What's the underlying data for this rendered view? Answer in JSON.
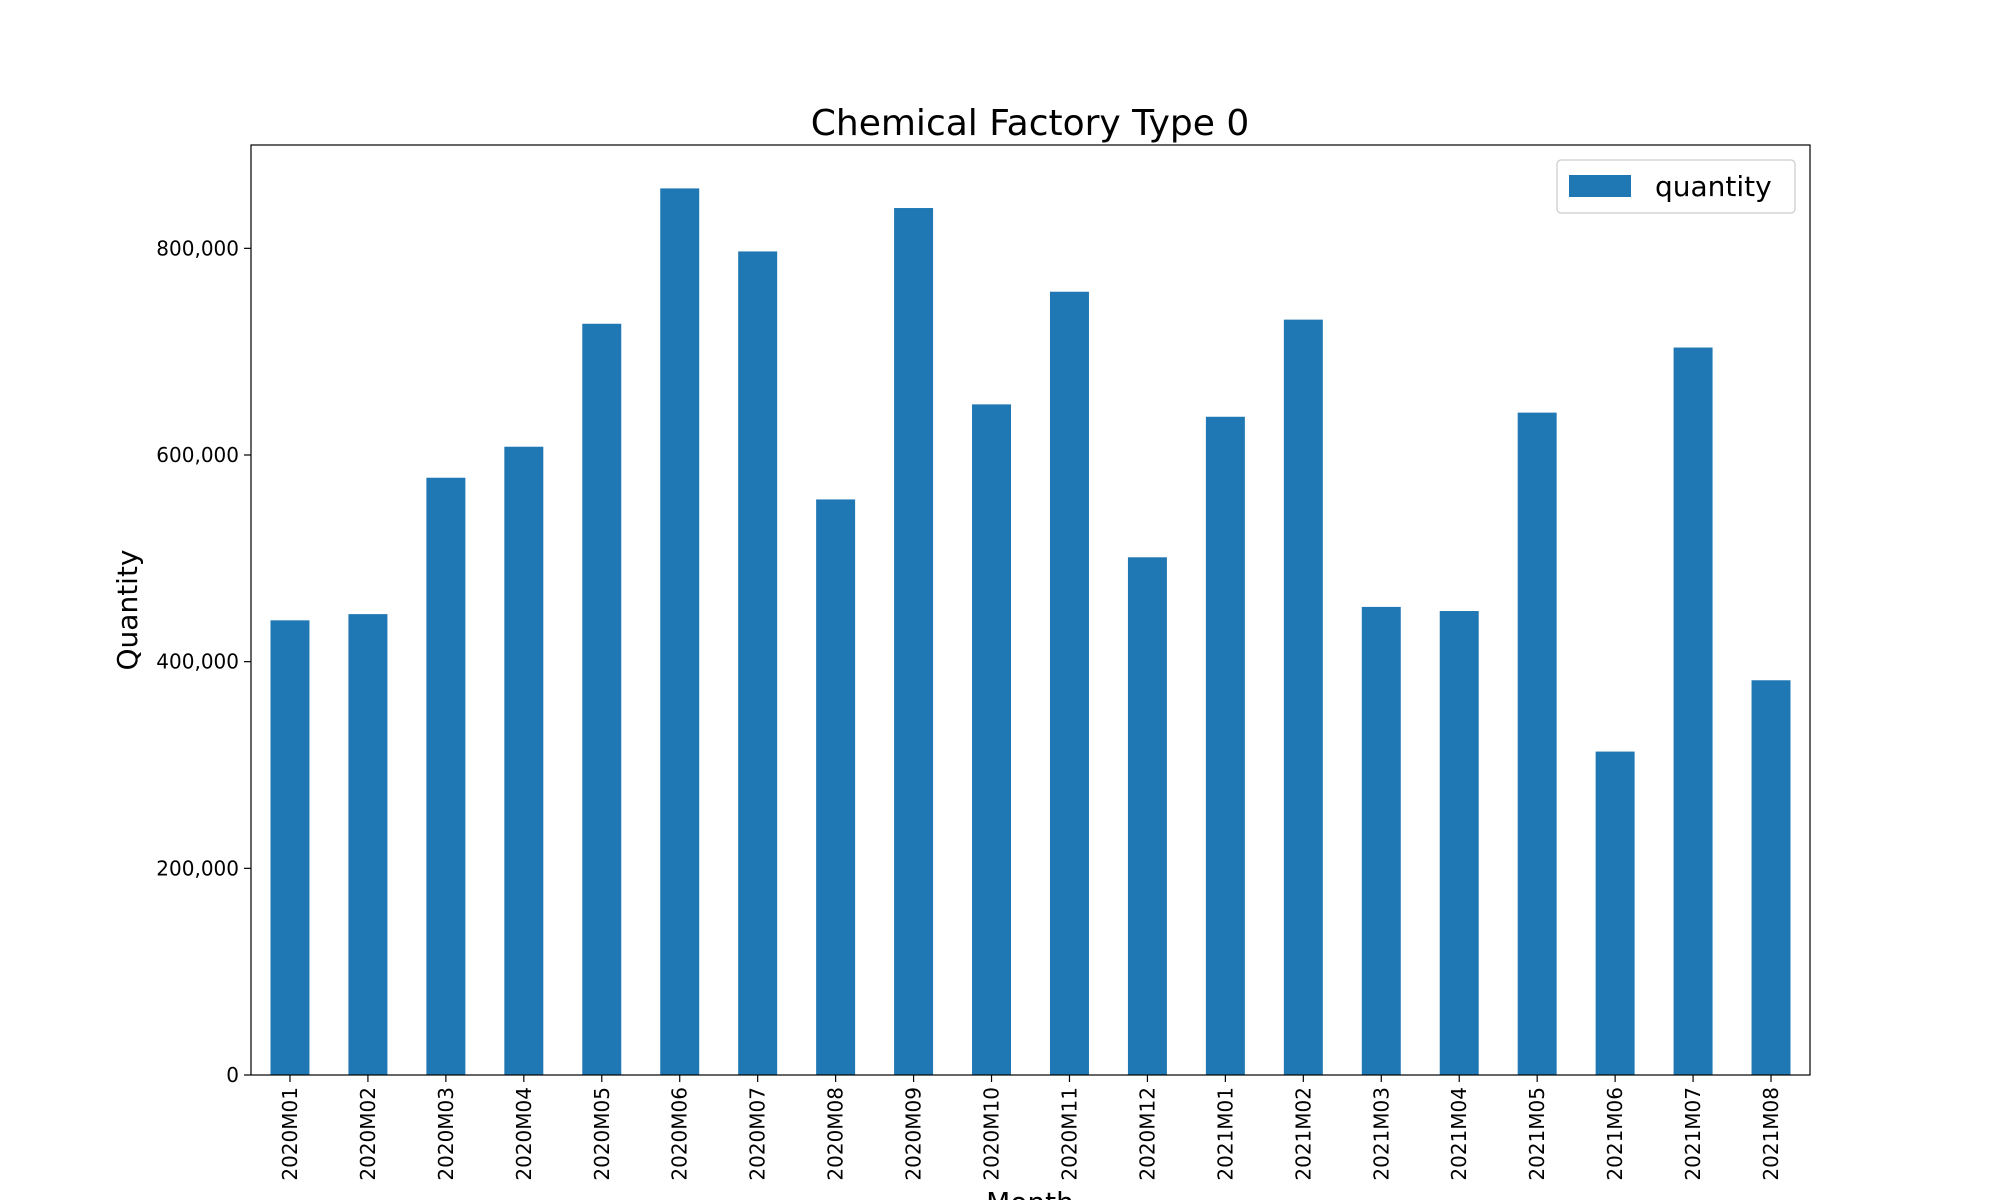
{
  "chart_data": {
    "type": "bar",
    "title": "Chemical Factory Type 0",
    "xlabel": "Month",
    "ylabel": "Quantity",
    "ylim": [
      0,
      900000
    ],
    "yticks": [
      0,
      200000,
      400000,
      600000,
      800000
    ],
    "ytick_labels": [
      "0",
      "200,000",
      "400,000",
      "600,000",
      "800,000"
    ],
    "grid": false,
    "legend": {
      "position": "top-right",
      "entries": [
        "quantity"
      ]
    },
    "colors": {
      "bar": "#1f77b4"
    },
    "categories": [
      "2020M01",
      "2020M02",
      "2020M03",
      "2020M04",
      "2020M05",
      "2020M06",
      "2020M07",
      "2020M08",
      "2020M09",
      "2020M10",
      "2020M11",
      "2020M12",
      "2021M01",
      "2021M02",
      "2021M03",
      "2021M04",
      "2021M05",
      "2021M06",
      "2021M07",
      "2021M08"
    ],
    "series": [
      {
        "name": "quantity",
        "values": [
          440000,
          446000,
          578000,
          608000,
          727000,
          858000,
          797000,
          557000,
          839000,
          649000,
          758000,
          501000,
          637000,
          731000,
          453000,
          449000,
          641000,
          313000,
          704000,
          382000
        ]
      }
    ]
  }
}
